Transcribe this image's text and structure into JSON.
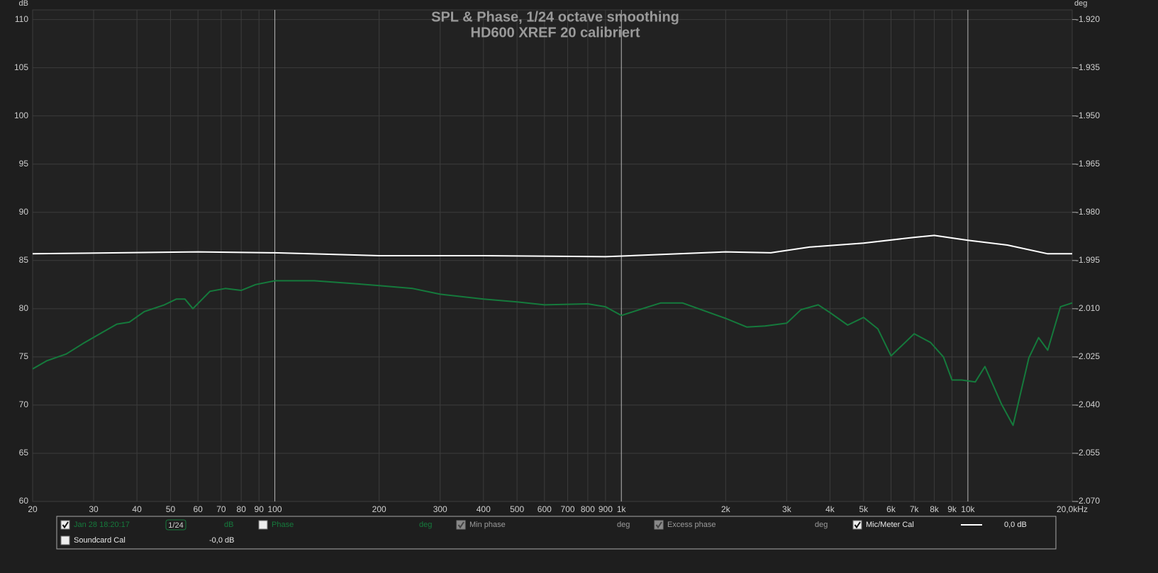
{
  "chart_data": {
    "type": "line",
    "title": "SPL & Phase, 1/24 octave smoothing",
    "subtitle": "HD600 XREF 20 calibriert",
    "y_unit": "dB",
    "y2_unit": "deg",
    "xscale": "log",
    "grid": true,
    "xlim": [
      20,
      20000
    ],
    "xticks": [
      20,
      30,
      40,
      50,
      60,
      70,
      80,
      90,
      100,
      200,
      300,
      400,
      500,
      600,
      700,
      800,
      900,
      {
        "value": 1000,
        "label": "1k"
      },
      {
        "value": 2000,
        "label": "2k"
      },
      {
        "value": 3000,
        "label": "3k"
      },
      {
        "value": 4000,
        "label": "4k"
      },
      {
        "value": 5000,
        "label": "5k"
      },
      {
        "value": 6000,
        "label": "6k"
      },
      {
        "value": 7000,
        "label": "7k"
      },
      {
        "value": 8000,
        "label": "8k"
      },
      {
        "value": 9000,
        "label": "9k"
      },
      {
        "value": 10000,
        "label": "10k"
      },
      {
        "value": 20000,
        "label": "20,0kHz"
      }
    ],
    "ylim": [
      60,
      111
    ],
    "yticks": [
      60,
      65,
      70,
      75,
      80,
      85,
      90,
      95,
      100,
      105,
      110
    ],
    "y2lim": [
      -2.07,
      -1.917
    ],
    "y2ticks": [
      {
        "value": -2.07,
        "label": "-2.070"
      },
      {
        "value": -2.055,
        "label": "-2.055"
      },
      {
        "value": -2.04,
        "label": "-2.040"
      },
      {
        "value": -2.025,
        "label": "-2.025"
      },
      {
        "value": -2.01,
        "label": "-2.010"
      },
      {
        "value": -1.995,
        "label": "-1.995"
      },
      {
        "value": -1.98,
        "label": "-1.980"
      },
      {
        "value": -1.965,
        "label": "-1.965"
      },
      {
        "value": -1.95,
        "label": "-1.950"
      },
      {
        "value": -1.935,
        "label": "-1.935"
      },
      {
        "value": -1.92,
        "label": "-1.920"
      }
    ],
    "series": [
      {
        "name": "Jan 28 18:20:17",
        "color": "#157a3c",
        "checked": true,
        "x": [
          20,
          22,
          25,
          28,
          32,
          35,
          38,
          42,
          48,
          52,
          55,
          58,
          65,
          72,
          80,
          88,
          100,
          130,
          170,
          200,
          250,
          300,
          400,
          500,
          600,
          800,
          900,
          1000,
          1150,
          1300,
          1500,
          1700,
          2000,
          2300,
          2600,
          3000,
          3300,
          3700,
          4000,
          4500,
          5000,
          5500,
          6000,
          7000,
          7800,
          8500,
          9000,
          9600,
          10500,
          11200,
          12500,
          13500,
          15000,
          16000,
          17000,
          18500,
          20000
        ],
        "values": [
          73.75,
          74.6,
          75.3,
          76.4,
          77.6,
          78.4,
          78.6,
          79.7,
          80.4,
          81.0,
          81.0,
          80.0,
          81.8,
          82.1,
          81.9,
          82.5,
          82.9,
          82.9,
          82.6,
          82.4,
          82.1,
          81.5,
          81.0,
          80.7,
          80.4,
          80.5,
          80.2,
          79.3,
          80.0,
          80.6,
          80.6,
          79.9,
          79.0,
          78.1,
          78.2,
          78.5,
          79.9,
          80.4,
          79.6,
          78.3,
          79.1,
          77.9,
          75.1,
          77.4,
          76.5,
          75.0,
          72.6,
          72.6,
          72.4,
          74.0,
          70.1,
          67.9,
          74.9,
          77.0,
          75.7,
          80.2,
          80.6
        ]
      },
      {
        "name": "Mic/Meter Cal",
        "color": "#ffffff",
        "checked": true,
        "x": [
          20,
          60,
          100,
          200,
          400,
          900,
          2000,
          2700,
          3500,
          5000,
          7000,
          8000,
          10000,
          13000,
          17000,
          20000
        ],
        "values": [
          85.7,
          85.9,
          85.8,
          85.5,
          85.5,
          85.4,
          85.9,
          85.8,
          86.4,
          86.8,
          87.4,
          87.6,
          87.1,
          86.6,
          85.7,
          85.7
        ]
      }
    ],
    "legend": {
      "smoothing": "1/24",
      "unit": "dB",
      "items": [
        {
          "label": "Phase",
          "checked": false,
          "disabled": false,
          "unit": "deg"
        },
        {
          "label": "Min phase",
          "checked": true,
          "disabled": true,
          "unit": "deg"
        },
        {
          "label": "Excess phase",
          "checked": true,
          "disabled": true,
          "unit": "deg"
        }
      ],
      "mic_cal_offset": "0,0 dB",
      "soundcard": {
        "label": "Soundcard Cal",
        "checked": false,
        "offset": "-0,0 dB"
      }
    }
  }
}
